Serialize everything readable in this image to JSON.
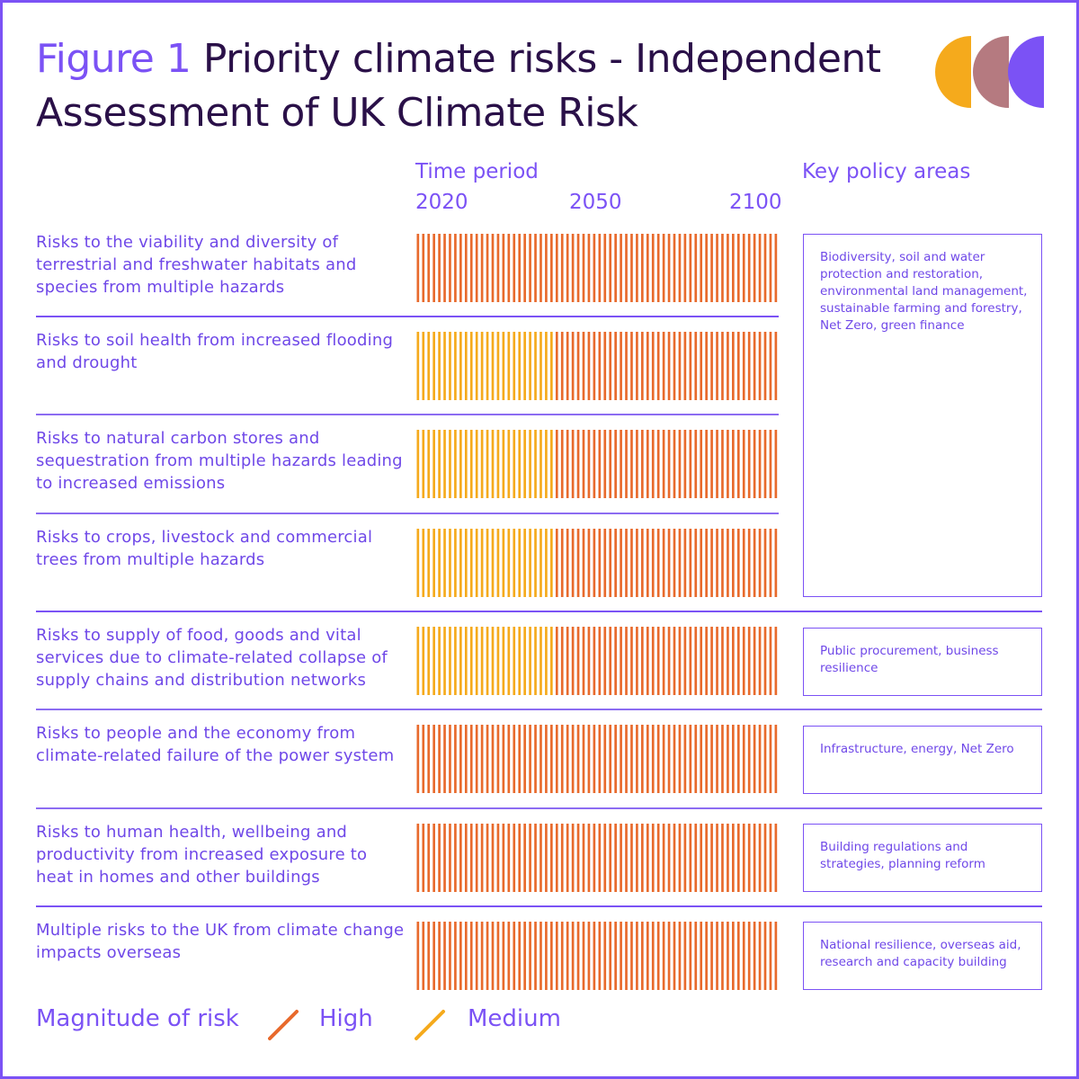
{
  "title": {
    "figure": "Figure 1",
    "text": " Priority climate risks - Independent Assessment of UK Climate Risk"
  },
  "headers": {
    "time_period": "Time period",
    "policy_areas": "Key policy areas"
  },
  "colors": {
    "high": "#e86a2c",
    "medium": "#f5aa1c",
    "accent": "#7b52f5",
    "title": "#2a1048",
    "logo": [
      "#f5aa1c",
      "#b57a80",
      "#7b52f5"
    ]
  },
  "legend": {
    "title": "Magnitude of risk",
    "high": "High",
    "medium": "Medium"
  },
  "chart_data": {
    "type": "table",
    "x_ticks": [
      "2020",
      "2050",
      "2100"
    ],
    "rows": [
      {
        "label": "Risks to the viability and diversity of terrestrial and freshwater habitats and species from multiple hazards",
        "segments": [
          {
            "from": 2020,
            "to": 2100,
            "magnitude": "High"
          }
        ]
      },
      {
        "label": "Risks to soil health from increased flooding and drought",
        "segments": [
          {
            "from": 2020,
            "to": 2050,
            "magnitude": "Medium"
          },
          {
            "from": 2050,
            "to": 2100,
            "magnitude": "High"
          }
        ]
      },
      {
        "label": "Risks to natural carbon stores and sequestration from multiple hazards leading to increased emissions",
        "segments": [
          {
            "from": 2020,
            "to": 2050,
            "magnitude": "Medium"
          },
          {
            "from": 2050,
            "to": 2100,
            "magnitude": "High"
          }
        ]
      },
      {
        "label": "Risks to crops, livestock and commercial trees from multiple hazards",
        "segments": [
          {
            "from": 2020,
            "to": 2050,
            "magnitude": "Medium"
          },
          {
            "from": 2050,
            "to": 2100,
            "magnitude": "High"
          }
        ]
      },
      {
        "label": "Risks to supply of food, goods and vital services due to climate-related collapse of supply chains and distribution networks",
        "segments": [
          {
            "from": 2020,
            "to": 2050,
            "magnitude": "Medium"
          },
          {
            "from": 2050,
            "to": 2100,
            "magnitude": "High"
          }
        ]
      },
      {
        "label": "Risks to people and the economy from climate-related failure of the power system",
        "segments": [
          {
            "from": 2020,
            "to": 2100,
            "magnitude": "High"
          }
        ]
      },
      {
        "label": "Risks to human health, wellbeing and productivity from increased exposure to heat in homes and other buildings",
        "segments": [
          {
            "from": 2020,
            "to": 2100,
            "magnitude": "High"
          }
        ]
      },
      {
        "label": "Multiple risks to the UK from climate change impacts overseas",
        "segments": [
          {
            "from": 2020,
            "to": 2100,
            "magnitude": "High"
          }
        ]
      }
    ],
    "policy_areas": [
      {
        "rows": [
          1,
          2,
          3,
          4
        ],
        "text": "Biodiversity, soil and water protection and restoration, environmental land management, sustainable farming and forestry, Net Zero, green finance"
      },
      {
        "rows": [
          5
        ],
        "text": "Public procurement, business resilience"
      },
      {
        "rows": [
          6
        ],
        "text": "Infrastructure, energy, Net Zero"
      },
      {
        "rows": [
          7
        ],
        "text": "Building regulations and strategies, planning reform"
      },
      {
        "rows": [
          8
        ],
        "text": "National resilience, overseas aid, research and capacity building"
      }
    ]
  }
}
